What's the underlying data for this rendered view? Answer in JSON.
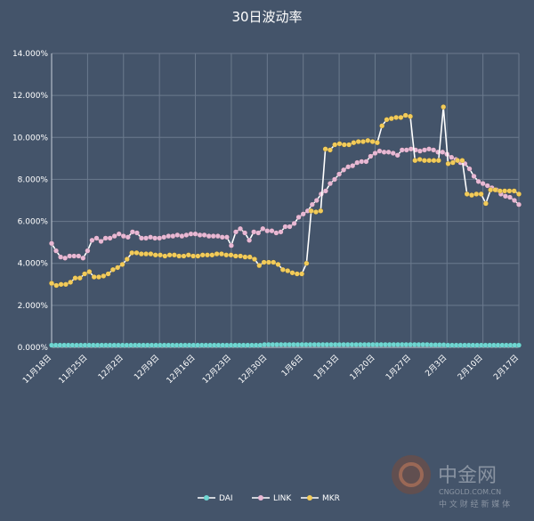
{
  "chart_data": {
    "type": "line",
    "title": "30日波动率",
    "xlabel": "",
    "ylabel": "",
    "ylim": [
      0,
      14
    ],
    "y_ticks": [
      "0.000%",
      "2.000%",
      "4.000%",
      "6.000%",
      "8.000%",
      "10.000%",
      "12.000%",
      "14.000%"
    ],
    "x_ticks": [
      "11月18日",
      "11月25日",
      "12月2日",
      "12月9日",
      "12月16日",
      "12月23日",
      "12月30日",
      "1月6日",
      "1月13日",
      "1月20日",
      "1月27日",
      "2月3日",
      "2月10日",
      "2月17日"
    ],
    "grid": true,
    "legend_position": "bottom",
    "series": [
      {
        "name": "DAI",
        "color": "#6fd6d2",
        "values": [
          0.1,
          0.1,
          0.1,
          0.1,
          0.1,
          0.1,
          0.1,
          0.1,
          0.1,
          0.1,
          0.1,
          0.1,
          0.1,
          0.1,
          0.1,
          0.1,
          0.1,
          0.1,
          0.1,
          0.1,
          0.1,
          0.1,
          0.1,
          0.1,
          0.1,
          0.1,
          0.1,
          0.1,
          0.1,
          0.1,
          0.1,
          0.1,
          0.1,
          0.1,
          0.1,
          0.1,
          0.1,
          0.1,
          0.1,
          0.1,
          0.1,
          0.1,
          0.1,
          0.1,
          0.1,
          0.1,
          0.1,
          0.1,
          0.1,
          0.1,
          0.1,
          0.13,
          0.13,
          0.13,
          0.13,
          0.13,
          0.13,
          0.13,
          0.13,
          0.13,
          0.13,
          0.13,
          0.13,
          0.13,
          0.13,
          0.13,
          0.13,
          0.13,
          0.13,
          0.13,
          0.13,
          0.13,
          0.13,
          0.13,
          0.13,
          0.13,
          0.13,
          0.13,
          0.13,
          0.13,
          0.13,
          0.13,
          0.13,
          0.13,
          0.13,
          0.13,
          0.13,
          0.13,
          0.13,
          0.13,
          0.13,
          0.12,
          0.12,
          0.12,
          0.12,
          0.1,
          0.1,
          0.1,
          0.1,
          0.1,
          0.1,
          0.1,
          0.1,
          0.1,
          0.1,
          0.1,
          0.1,
          0.1,
          0.1,
          0.1,
          0.1,
          0.1,
          0.1
        ]
      },
      {
        "name": "LINK",
        "color": "#e8b8d4",
        "values": [
          4.95,
          4.6,
          4.3,
          4.25,
          4.35,
          4.35,
          4.35,
          4.25,
          4.6,
          5.1,
          5.2,
          5.05,
          5.2,
          5.2,
          5.3,
          5.4,
          5.3,
          5.25,
          5.5,
          5.45,
          5.2,
          5.2,
          5.25,
          5.2,
          5.2,
          5.25,
          5.3,
          5.3,
          5.35,
          5.3,
          5.35,
          5.4,
          5.4,
          5.35,
          5.35,
          5.3,
          5.3,
          5.3,
          5.25,
          5.25,
          4.85,
          5.5,
          5.65,
          5.45,
          5.1,
          5.5,
          5.45,
          5.65,
          5.55,
          5.55,
          5.45,
          5.5,
          5.75,
          5.75,
          5.9,
          6.2,
          6.35,
          6.5,
          6.8,
          7.0,
          7.3,
          7.45,
          7.8,
          8.0,
          8.25,
          8.45,
          8.6,
          8.65,
          8.8,
          8.85,
          8.85,
          9.1,
          9.25,
          9.35,
          9.3,
          9.3,
          9.25,
          9.15,
          9.4,
          9.4,
          9.45,
          9.4,
          9.35,
          9.4,
          9.45,
          9.4,
          9.3,
          9.3,
          9.2,
          9.05,
          8.95,
          8.8,
          8.75,
          8.5,
          8.15,
          7.9,
          7.8,
          7.7,
          7.6,
          7.5,
          7.3,
          7.2,
          7.15,
          7.0,
          6.8
        ]
      },
      {
        "name": "MKR",
        "color": "#f2cb5a",
        "values": [
          3.05,
          2.95,
          3.0,
          3.0,
          3.1,
          3.3,
          3.3,
          3.5,
          3.6,
          3.35,
          3.35,
          3.4,
          3.5,
          3.7,
          3.8,
          3.95,
          4.2,
          4.5,
          4.5,
          4.45,
          4.45,
          4.45,
          4.4,
          4.4,
          4.35,
          4.4,
          4.4,
          4.35,
          4.35,
          4.4,
          4.35,
          4.35,
          4.4,
          4.4,
          4.4,
          4.45,
          4.45,
          4.4,
          4.4,
          4.35,
          4.35,
          4.3,
          4.3,
          4.2,
          3.9,
          4.05,
          4.05,
          4.05,
          3.95,
          3.7,
          3.65,
          3.55,
          3.5,
          3.5,
          4.0,
          6.5,
          6.45,
          6.5,
          9.45,
          9.4,
          9.65,
          9.7,
          9.65,
          9.65,
          9.75,
          9.8,
          9.8,
          9.85,
          9.8,
          9.75,
          10.55,
          10.85,
          10.9,
          10.95,
          10.95,
          11.05,
          11.0,
          8.9,
          8.95,
          8.9,
          8.9,
          8.9,
          8.9,
          11.45,
          8.75,
          8.8,
          8.9,
          8.9,
          7.3,
          7.25,
          7.3,
          7.3,
          6.85,
          7.5,
          7.5,
          7.45,
          7.45,
          7.45,
          7.45,
          7.3
        ]
      }
    ]
  },
  "watermark": {
    "brand": "中金网",
    "url": "CNGOLD.COM.CN",
    "slogan": "中 文 财 经 新 媒 体"
  },
  "colors": {
    "background": "#44546a",
    "grid": "#6b7a8e",
    "axis": "#c8d0da"
  }
}
